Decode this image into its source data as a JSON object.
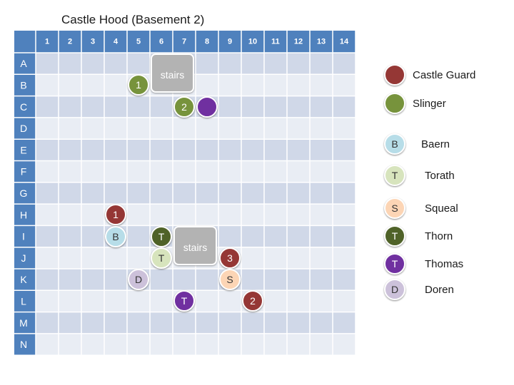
{
  "title": "Castle Hood (Basement 2)",
  "columns": [
    "1",
    "2",
    "3",
    "4",
    "5",
    "6",
    "7",
    "8",
    "9",
    "10",
    "11",
    "12",
    "13",
    "14"
  ],
  "rows": [
    "A",
    "B",
    "C",
    "D",
    "E",
    "F",
    "G",
    "H",
    "I",
    "J",
    "K",
    "L",
    "M",
    "N"
  ],
  "colors": {
    "header": "#4f81bd",
    "cell_dark": "#d0d8e8",
    "cell_light": "#e9edf4",
    "castle_guard": "#953735",
    "slinger": "#77933c",
    "baern": "#b7dde8",
    "torath": "#d7e4bd",
    "squeal": "#fcd5b5",
    "thorn": "#4f6228",
    "thomas": "#7030a0",
    "doren": "#ccc1da"
  },
  "stairs": [
    {
      "label": "stairs",
      "row": "A",
      "col": 6
    },
    {
      "label": "stairs",
      "row": "I",
      "col": 7
    }
  ],
  "tokens": [
    {
      "type": "slinger",
      "label": "1",
      "row": "B",
      "col": 5
    },
    {
      "type": "slinger",
      "label": "2",
      "row": "C",
      "col": 7
    },
    {
      "type": "thomas",
      "label": "",
      "row": "C",
      "col": 8
    },
    {
      "type": "castle_guard",
      "label": "1",
      "row": "H",
      "col": 4
    },
    {
      "type": "baern",
      "label": "B",
      "row": "I",
      "col": 4
    },
    {
      "type": "thorn",
      "label": "T",
      "row": "I",
      "col": 6
    },
    {
      "type": "torath",
      "label": "T",
      "row": "J",
      "col": 6
    },
    {
      "type": "castle_guard",
      "label": "3",
      "row": "J",
      "col": 9
    },
    {
      "type": "doren",
      "label": "D",
      "row": "K",
      "col": 5
    },
    {
      "type": "squeal",
      "label": "S",
      "row": "K",
      "col": 9
    },
    {
      "type": "thomas",
      "label": "T",
      "row": "L",
      "col": 7
    },
    {
      "type": "castle_guard",
      "label": "2",
      "row": "L",
      "col": 10
    }
  ],
  "legend": [
    {
      "type": "castle_guard",
      "token": "",
      "label": "Castle Guard"
    },
    {
      "type": "slinger",
      "token": "",
      "label": "Slinger"
    },
    {
      "type": "baern",
      "token": "B",
      "label": "Baern"
    },
    {
      "type": "torath",
      "token": "T",
      "label": "Torath"
    },
    {
      "type": "squeal",
      "token": "S",
      "label": "Squeal"
    },
    {
      "type": "thorn",
      "token": "T",
      "label": "Thorn"
    },
    {
      "type": "thomas",
      "token": "T",
      "label": "Thomas"
    },
    {
      "type": "doren",
      "token": "D",
      "label": "Doren"
    }
  ]
}
